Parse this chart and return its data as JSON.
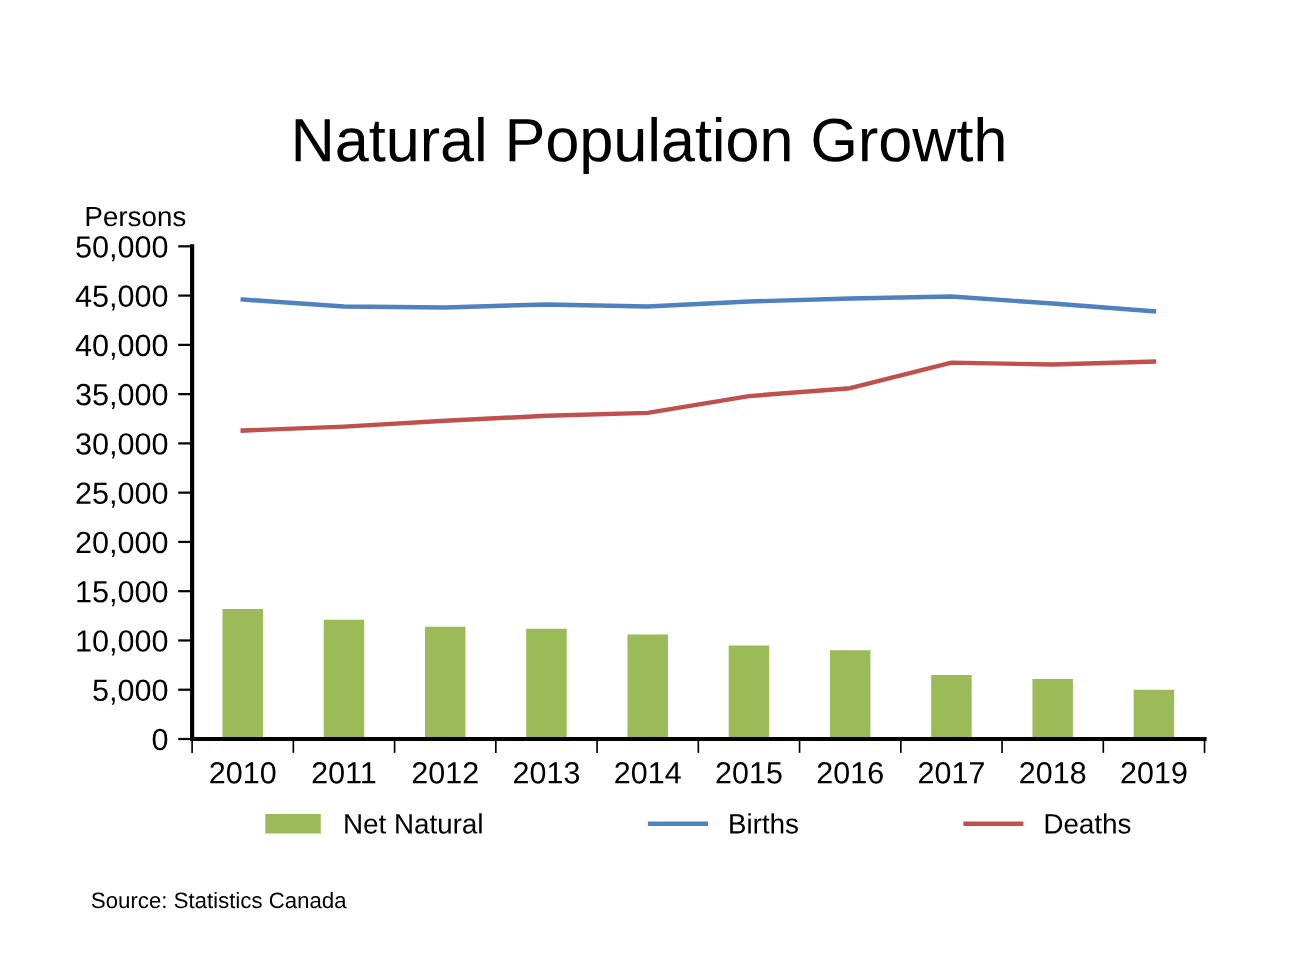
{
  "chart_data": {
    "type": "bar",
    "title": "Natural Population Growth",
    "ylabel": "Persons",
    "categories": [
      "2010",
      "2011",
      "2012",
      "2013",
      "2014",
      "2015",
      "2016",
      "2017",
      "2018",
      "2019"
    ],
    "series": [
      {
        "name": "Net Natural",
        "color": "#9bbb59",
        "values": [
          13200,
          12100,
          11400,
          11200,
          10600,
          9500,
          9000,
          6500,
          6100,
          5000
        ]
      },
      {
        "name": "Births",
        "type": "line",
        "color": "#4f81bd",
        "values": [
          44600,
          43900,
          43800,
          44100,
          43900,
          44400,
          44700,
          44900,
          44200,
          43400
        ]
      },
      {
        "name": "Deaths",
        "type": "line",
        "color": "#c0504d",
        "values": [
          31300,
          31700,
          32300,
          32800,
          33100,
          34800,
          35600,
          38200,
          38000,
          38300
        ]
      }
    ],
    "ylim": [
      0,
      50000
    ],
    "yticks": [
      {
        "value": 0,
        "label": "0"
      },
      {
        "value": 5000,
        "label": "5,000"
      },
      {
        "value": 10000,
        "label": "10,000"
      },
      {
        "value": 15000,
        "label": "15,000"
      },
      {
        "value": 20000,
        "label": "20,000"
      },
      {
        "value": 25000,
        "label": "25,000"
      },
      {
        "value": 30000,
        "label": "30,000"
      },
      {
        "value": 35000,
        "label": "35,000"
      },
      {
        "value": 40000,
        "label": "40,000"
      },
      {
        "value": 45000,
        "label": "45,000"
      },
      {
        "value": 50000,
        "label": "50,000"
      }
    ],
    "grid": false,
    "legend": "bottom",
    "marker": "none",
    "line_style": "solid",
    "annotations": [
      "Source: Statistics Canada"
    ]
  }
}
